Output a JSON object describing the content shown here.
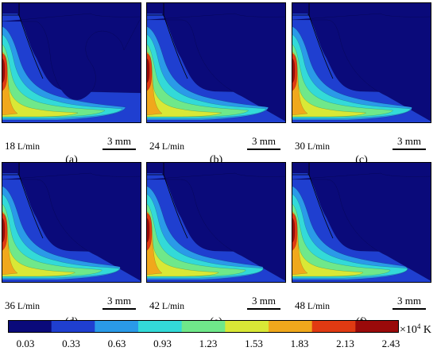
{
  "panels": [
    {
      "flow_value": "18",
      "flow_unit": " L/min",
      "scalebar": "3 mm",
      "caption": "(a)",
      "variant": 0
    },
    {
      "flow_value": "24",
      "flow_unit": " L/min",
      "scalebar": "3 mm",
      "caption": "(b)",
      "variant": 1
    },
    {
      "flow_value": "30",
      "flow_unit": " L/min",
      "scalebar": "3 mm",
      "caption": "(c)",
      "variant": 2
    },
    {
      "flow_value": "36",
      "flow_unit": " L/min",
      "scalebar": "3 mm",
      "caption": "(d)",
      "variant": 3
    },
    {
      "flow_value": "42",
      "flow_unit": " L/min",
      "scalebar": "3 mm",
      "caption": "(e)",
      "variant": 4
    },
    {
      "flow_value": "48",
      "flow_unit": " L/min",
      "scalebar": "3 mm",
      "caption": "(f)",
      "variant": 5
    }
  ],
  "colorbar": {
    "ticks": [
      "0.03",
      "0.33",
      "0.63",
      "0.93",
      "1.23",
      "1.53",
      "1.83",
      "2.13",
      "2.43"
    ],
    "colors": [
      "#0a0a7a",
      "#1f3fd0",
      "#2a9ae8",
      "#33dad8",
      "#6fe88a",
      "#d9e836",
      "#f0a81c",
      "#e03a12",
      "#9a0a0a"
    ],
    "unit_prefix": "×",
    "unit_base": "10",
    "unit_exponent": "4",
    "unit_suffix": " K"
  }
}
